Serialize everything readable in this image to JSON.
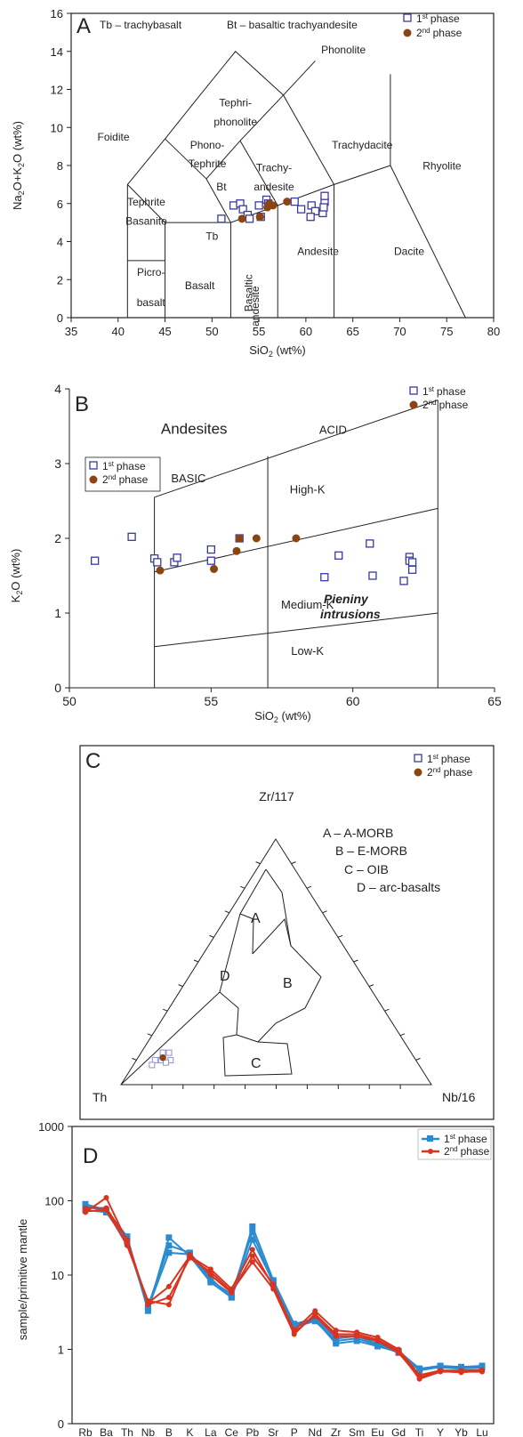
{
  "panels": {
    "a": {
      "letter": "A",
      "ylabel": "Na2O+K2O (wt%)",
      "xlabel": "SiO2 (wt%)",
      "note_tb": "Tb – trachybasalt",
      "note_bt": "Bt – basaltic trachyandesite",
      "xticks": [
        "35",
        "40",
        "45",
        "50",
        "55",
        "60",
        "65",
        "70",
        "75",
        "80"
      ],
      "yticks": [
        "0",
        "2",
        "4",
        "6",
        "8",
        "10",
        "12",
        "14",
        "16"
      ],
      "fields": [
        "Phonolite",
        "Tephri-",
        "phonolite",
        "Foidite",
        "Phono-",
        "Tephrite",
        "Trachydacite",
        "Trachy-",
        "andesite",
        "Bt",
        "Rhyolite",
        "Tephrite",
        "Basanite",
        "Tb",
        "Basaltic",
        "andesite",
        "Andesite",
        "Dacite",
        "Picro-",
        "basalt",
        "Basalt"
      ]
    },
    "b": {
      "letter": "B",
      "ylabel": "K2O (wt%)",
      "xlabel": "SiO2 (wt%)",
      "xticks": [
        "50",
        "55",
        "60",
        "65"
      ],
      "yticks": [
        "0",
        "1",
        "2",
        "3",
        "4"
      ],
      "fields": [
        "Andesites",
        "ACID",
        "BASIC",
        "High-K",
        "Medium-K",
        "Low-K"
      ],
      "inset_a": "Pieniny",
      "inset_b": "intrusions"
    },
    "c": {
      "letter": "C",
      "apex_top": "Zr/117",
      "apex_left": "Th",
      "apex_right": "Nb/16",
      "fields": [
        "A",
        "B",
        "C",
        "D"
      ],
      "key": [
        "A – A-MORB",
        "B – E-MORB",
        "C – OIB",
        "D – arc-basalts"
      ]
    },
    "d": {
      "letter": "D",
      "ylabel": "sample/primitive mantle",
      "yticks": [
        "0",
        "1",
        "10",
        "100",
        "1000"
      ]
    }
  },
  "legend": {
    "first": "1",
    "second": "2",
    "sup1": "st",
    "sup2": "nd",
    "phase": "phase"
  },
  "colors": {
    "first": "#3a3aa0",
    "second": "#8b4513",
    "d_first": "#2b8bd0",
    "d_second": "#d9341f"
  },
  "chart_data": [
    {
      "type": "scatter",
      "title": "",
      "xlabel": "SiO2 (wt%)",
      "ylabel": "Na2O+K2O (wt%)",
      "xlim": [
        35,
        80
      ],
      "ylim": [
        0,
        16
      ],
      "grid": false,
      "legend": "top-right",
      "series": [
        {
          "name": "1st phase",
          "x": [
            51.0,
            52.3,
            53.0,
            53.3,
            53.8,
            54.0,
            55.0,
            55.2,
            55.8,
            56.0,
            58.8,
            59.5,
            60.6,
            61.0,
            61.8,
            62.0,
            62.0,
            61.9,
            60.5
          ],
          "y": [
            5.2,
            5.9,
            6.0,
            5.7,
            5.4,
            5.2,
            5.9,
            5.3,
            6.2,
            6.0,
            6.1,
            5.7,
            5.9,
            5.6,
            5.5,
            6.1,
            6.4,
            5.8,
            5.3
          ]
        },
        {
          "name": "2nd phase",
          "x": [
            53.2,
            55.1,
            55.9,
            56.1,
            56.5,
            58.0
          ],
          "y": [
            5.2,
            5.3,
            5.8,
            6.0,
            5.9,
            6.1
          ]
        }
      ]
    },
    {
      "type": "scatter",
      "title": "",
      "xlabel": "SiO2 (wt%)",
      "ylabel": "K2O (wt%)",
      "xlim": [
        50,
        65
      ],
      "ylim": [
        0,
        4
      ],
      "grid": false,
      "legend": "top-right",
      "series": [
        {
          "name": "1st phase",
          "x": [
            50.9,
            52.2,
            53.0,
            53.1,
            53.7,
            53.8,
            55.0,
            55.0,
            56.0,
            59.0,
            59.5,
            60.6,
            60.7,
            61.8,
            62.0,
            62.0,
            62.1,
            62.1
          ],
          "y": [
            1.7,
            2.02,
            1.73,
            1.68,
            1.68,
            1.74,
            1.85,
            1.7,
            2.0,
            1.48,
            1.77,
            1.93,
            1.5,
            1.43,
            1.75,
            1.7,
            1.58,
            1.68
          ]
        },
        {
          "name": "2nd phase",
          "x": [
            53.2,
            55.1,
            55.9,
            56.0,
            56.6,
            58.0
          ],
          "y": [
            1.57,
            1.59,
            1.83,
            2.0,
            2.0,
            2.0
          ]
        }
      ]
    },
    {
      "type": "scatter",
      "title": "",
      "xlabel": "",
      "ylabel": "",
      "series": [
        {
          "name": "1st phase",
          "Th": [
            0.82,
            0.84,
            0.79,
            0.81,
            0.86,
            0.78,
            0.8
          ],
          "Nb16": [
            0.08,
            0.06,
            0.11,
            0.1,
            0.06,
            0.09,
            0.07
          ]
        },
        {
          "name": "2nd phase",
          "Th": [
            0.81
          ],
          "Nb16": [
            0.08
          ]
        }
      ]
    },
    {
      "type": "line",
      "title": "",
      "xlabel": "",
      "ylabel": "sample/primitive mantle",
      "ylim": [
        0.1,
        1000
      ],
      "yscale": "log",
      "legend": "top-right",
      "categories": [
        "Rb",
        "Ba",
        "Th",
        "Nb",
        "B",
        "K",
        "La",
        "Ce",
        "Pb",
        "Sr",
        "P",
        "Nd",
        "Zr",
        "Sm",
        "Eu",
        "Gd",
        "Ti",
        "Y",
        "Yb",
        "Lu"
      ],
      "series": [
        {
          "name": "1st phase",
          "values": [
            90,
            75,
            33,
            3.3,
            32,
            18,
            8,
            5,
            45,
            8.5,
            2.2,
            2.6,
            1.4,
            1.5,
            1.2,
            0.95,
            0.55,
            0.6,
            0.58,
            0.6
          ]
        },
        {
          "name": "1st phase",
          "values": [
            75,
            70,
            28,
            3.6,
            20,
            19,
            8.5,
            5.5,
            38,
            7.5,
            2.0,
            2.4,
            1.3,
            1.4,
            1.15,
            0.9,
            0.52,
            0.58,
            0.56,
            0.58
          ]
        },
        {
          "name": "1st phase",
          "values": [
            85,
            72,
            30,
            3.8,
            25,
            20,
            9,
            5,
            30,
            8,
            2.1,
            2.5,
            1.2,
            1.3,
            1.1,
            0.92,
            0.55,
            0.57,
            0.55,
            0.57
          ]
        },
        {
          "name": "2nd phase",
          "values": [
            70,
            110,
            28,
            4.2,
            7,
            18,
            12,
            6.5,
            22,
            7,
            1.8,
            3.3,
            1.8,
            1.7,
            1.45,
            1.0,
            0.45,
            0.52,
            0.52,
            0.53
          ]
        },
        {
          "name": "2nd phase",
          "values": [
            80,
            80,
            30,
            4.0,
            5,
            17,
            11,
            6,
            15,
            6.5,
            1.6,
            3.0,
            1.6,
            1.6,
            1.35,
            0.95,
            0.4,
            0.5,
            0.5,
            0.5
          ]
        },
        {
          "name": "2nd phase",
          "values": [
            72,
            75,
            25,
            4.5,
            4,
            19,
            10,
            5.8,
            18,
            7.5,
            1.7,
            2.8,
            1.5,
            1.5,
            1.3,
            0.9,
            0.42,
            0.51,
            0.49,
            0.52
          ]
        }
      ]
    }
  ]
}
